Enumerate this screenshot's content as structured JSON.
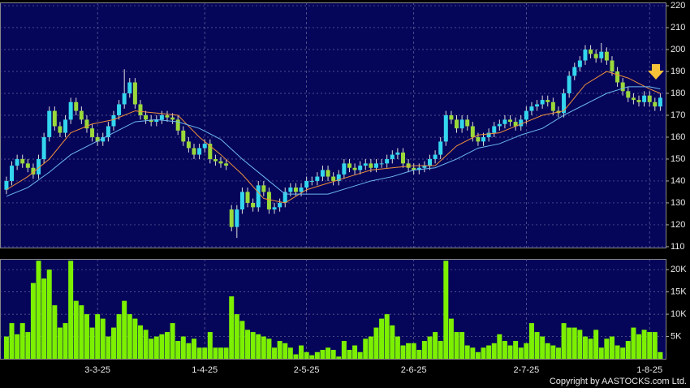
{
  "chart_data": [
    {
      "type": "candlestick",
      "xlim": [
        -1.2,
        123
      ],
      "ylim": [
        109.6,
        221.5
      ],
      "yticks": [
        110,
        120,
        130,
        140,
        150,
        160,
        170,
        180,
        190,
        200,
        210,
        220
      ],
      "xticks": [
        {
          "value": 17,
          "label": "3-3-25"
        },
        {
          "value": 37,
          "label": "1-4-25"
        },
        {
          "value": 56,
          "label": "2-5-25"
        },
        {
          "value": 76,
          "label": "2-6-25"
        },
        {
          "value": 97,
          "label": "2-7-25"
        },
        {
          "value": 120,
          "label": "1-8-25"
        }
      ],
      "grid": true,
      "up_color": "#33d6ee",
      "down_color": "#9ad93a",
      "open": [
        136,
        140,
        147,
        150,
        148,
        146,
        143,
        150,
        160,
        172,
        165,
        162,
        168,
        176,
        172,
        168,
        164,
        160,
        158,
        160,
        165,
        170,
        175,
        180,
        185,
        175,
        170,
        168,
        167,
        168,
        170,
        169,
        168,
        163,
        158,
        155,
        152,
        155,
        157,
        150,
        149,
        148,
        127,
        119,
        127,
        135,
        130,
        128,
        138,
        135,
        127,
        128,
        130,
        135,
        137,
        135,
        137,
        140,
        140,
        142,
        145,
        142,
        140,
        143,
        148,
        146,
        145,
        147,
        148,
        146,
        148,
        148,
        150,
        152,
        153,
        148,
        146,
        145,
        146,
        147,
        150,
        152,
        158,
        170,
        168,
        164,
        168,
        165,
        160,
        158,
        160,
        162,
        165,
        166,
        168,
        167,
        165,
        168,
        172,
        174,
        175,
        177,
        176,
        172,
        171,
        180,
        188,
        192,
        195,
        200,
        198,
        196,
        199,
        195,
        190,
        185,
        181,
        178,
        177,
        176,
        179,
        176,
        174
      ],
      "high": [
        142,
        149,
        152,
        152,
        150,
        148,
        152,
        162,
        174,
        174,
        167,
        170,
        178,
        178,
        174,
        170,
        166,
        162,
        162,
        167,
        172,
        177,
        191,
        187,
        187,
        177,
        172,
        170,
        170,
        172,
        172,
        171,
        170,
        165,
        160,
        157,
        157,
        159,
        159,
        152,
        151,
        150,
        129,
        129,
        137,
        137,
        132,
        140,
        140,
        137,
        130,
        132,
        137,
        139,
        139,
        139,
        142,
        142,
        144,
        147,
        147,
        144,
        145,
        150,
        150,
        148,
        149,
        150,
        150,
        150,
        150,
        152,
        154,
        155,
        155,
        150,
        148,
        148,
        149,
        152,
        154,
        160,
        172,
        172,
        170,
        170,
        170,
        167,
        162,
        162,
        164,
        167,
        168,
        170,
        170,
        169,
        170,
        174,
        176,
        177,
        179,
        179,
        178,
        174,
        182,
        190,
        194,
        197,
        202,
        202,
        200,
        203,
        201,
        197,
        192,
        187,
        183,
        180,
        179,
        181,
        181,
        178,
        180
      ],
      "low": [
        134,
        138,
        145,
        146,
        144,
        141,
        141,
        148,
        158,
        163,
        160,
        160,
        166,
        170,
        166,
        162,
        158,
        156,
        156,
        158,
        163,
        168,
        173,
        178,
        173,
        168,
        166,
        165,
        165,
        166,
        167,
        166,
        161,
        156,
        153,
        150,
        150,
        153,
        148,
        147,
        146,
        145,
        117,
        114,
        125,
        128,
        126,
        126,
        133,
        125,
        125,
        126,
        128,
        133,
        133,
        133,
        135,
        138,
        138,
        140,
        140,
        138,
        138,
        141,
        144,
        143,
        143,
        145,
        144,
        144,
        146,
        146,
        148,
        150,
        146,
        144,
        143,
        143,
        144,
        145,
        148,
        150,
        156,
        166,
        162,
        162,
        163,
        158,
        156,
        156,
        158,
        160,
        163,
        164,
        165,
        163,
        163,
        166,
        170,
        172,
        173,
        174,
        170,
        169,
        169,
        178,
        186,
        190,
        193,
        196,
        194,
        194,
        193,
        188,
        183,
        179,
        176,
        175,
        174,
        174,
        174,
        172,
        172
      ],
      "close": [
        140,
        147,
        150,
        148,
        146,
        143,
        150,
        160,
        172,
        165,
        162,
        168,
        176,
        172,
        168,
        164,
        160,
        158,
        160,
        165,
        170,
        175,
        180,
        185,
        175,
        170,
        168,
        167,
        168,
        170,
        169,
        168,
        163,
        158,
        155,
        152,
        155,
        157,
        150,
        149,
        148,
        147,
        119,
        127,
        135,
        130,
        128,
        138,
        135,
        127,
        128,
        130,
        135,
        137,
        135,
        137,
        140,
        140,
        142,
        145,
        142,
        140,
        143,
        148,
        146,
        145,
        147,
        148,
        146,
        148,
        148,
        150,
        152,
        153,
        148,
        146,
        145,
        146,
        147,
        150,
        152,
        158,
        170,
        168,
        164,
        168,
        165,
        160,
        158,
        160,
        162,
        165,
        166,
        168,
        167,
        165,
        168,
        172,
        174,
        175,
        177,
        176,
        172,
        171,
        180,
        188,
        192,
        195,
        200,
        198,
        196,
        199,
        195,
        190,
        185,
        181,
        178,
        177,
        176,
        179,
        176,
        174,
        178
      ],
      "series": [
        {
          "color": "#f0903a",
          "x": [
            0,
            4,
            8,
            12,
            16,
            20,
            24,
            28,
            32,
            36,
            40,
            44,
            48,
            52,
            56,
            60,
            64,
            68,
            72,
            76,
            80,
            84,
            88,
            92,
            96,
            100,
            104,
            108,
            112,
            116,
            120,
            122
          ],
          "values": [
            136,
            142,
            150,
            162,
            166,
            168,
            172,
            171,
            170,
            160,
            152,
            143,
            132,
            130,
            136,
            139,
            142,
            145,
            146,
            147,
            147,
            156,
            161,
            162,
            166,
            170,
            172,
            184,
            190,
            187,
            182,
            180
          ]
        },
        {
          "color": "#6fb8f0",
          "x": [
            0,
            4,
            8,
            12,
            16,
            20,
            24,
            28,
            32,
            36,
            40,
            44,
            48,
            52,
            56,
            60,
            64,
            68,
            72,
            76,
            80,
            84,
            88,
            92,
            96,
            100,
            104,
            108,
            112,
            116,
            120,
            122
          ],
          "values": [
            133,
            137,
            144,
            152,
            157,
            162,
            167,
            168,
            167,
            164,
            159,
            150,
            142,
            134,
            134,
            134,
            137,
            140,
            142,
            145,
            146,
            150,
            155,
            157,
            161,
            164,
            170,
            175,
            180,
            183,
            183,
            182
          ]
        }
      ]
    },
    {
      "type": "bar",
      "xlim": [
        -1.2,
        123
      ],
      "ylim": [
        0,
        22400
      ],
      "yticks": [
        {
          "value": 5000,
          "label": "5K"
        },
        {
          "value": 10000,
          "label": "10K"
        },
        {
          "value": 15000,
          "label": "15K"
        },
        {
          "value": 20000,
          "label": "20K"
        }
      ],
      "grid": true,
      "color": "#7cf000",
      "values": [
        5000,
        8000,
        5500,
        8000,
        6000,
        17000,
        22000,
        18000,
        20000,
        12000,
        7000,
        8000,
        22000,
        13000,
        12000,
        10000,
        7000,
        10000,
        9000,
        5000,
        7000,
        10000,
        13000,
        10000,
        9000,
        7500,
        6500,
        4500,
        5000,
        5500,
        6000,
        8000,
        4000,
        5000,
        3500,
        4500,
        2500,
        2500,
        6000,
        2500,
        2500,
        2500,
        14000,
        10000,
        8500,
        6500,
        6000,
        5500,
        5000,
        4500,
        2500,
        4000,
        3500,
        2500,
        1000,
        3000,
        1500,
        800,
        1500,
        2000,
        2500,
        2000,
        500,
        4000,
        2000,
        3000,
        1500,
        4500,
        5000,
        7000,
        9000,
        10000,
        7500,
        5000,
        3000,
        3500,
        3500,
        2000,
        4000,
        5000,
        6000,
        4000,
        22000,
        9000,
        6000,
        6000,
        3000,
        2500,
        1500,
        2500,
        3000,
        3500,
        5500,
        4000,
        3000,
        4000,
        2500,
        3500,
        8000,
        6000,
        5000,
        3500,
        3000,
        2500,
        8000,
        7000,
        7000,
        6500,
        5000,
        4500,
        6500,
        2500,
        4500,
        5000,
        3000,
        2500,
        4000,
        7000,
        5500,
        6500,
        6000,
        6000,
        1500
      ],
      "copyright": "Copyright by AASTOCKS.com Ltd."
    }
  ]
}
